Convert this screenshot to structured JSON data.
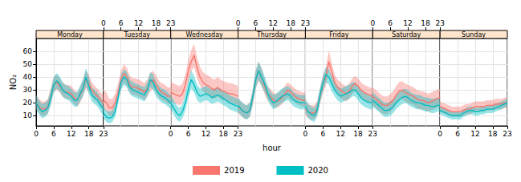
{
  "chart_data": {
    "type": "line",
    "y_label": "NO₂",
    "x_label": "hour",
    "panels": [
      "Monday",
      "Tuesday",
      "Wednesday",
      "Thursday",
      "Friday",
      "Saturday",
      "Sunday"
    ],
    "x": [
      0,
      1,
      2,
      3,
      4,
      5,
      6,
      7,
      8,
      9,
      10,
      11,
      12,
      13,
      14,
      15,
      16,
      17,
      18,
      19,
      20,
      21,
      22,
      23
    ],
    "xlim": [
      0,
      23
    ],
    "xticks": [
      0,
      6,
      12,
      18,
      23
    ],
    "ylim": [
      2,
      70
    ],
    "yticks": [
      10,
      20,
      30,
      40,
      50,
      60
    ],
    "grid": true,
    "legend": "bottom",
    "series": [
      {
        "name": "2019",
        "color": "#F8766D",
        "values": [
          [
            20,
            17,
            15,
            15,
            17,
            25,
            34,
            36,
            33,
            30,
            28,
            28,
            27,
            24,
            22,
            26,
            31,
            38,
            35,
            30,
            27,
            25,
            22,
            20
          ],
          [
            22,
            20,
            16,
            16,
            20,
            28,
            38,
            43,
            40,
            34,
            32,
            32,
            31,
            30,
            28,
            31,
            36,
            38,
            34,
            30,
            28,
            27,
            25,
            25
          ],
          [
            28,
            27,
            26,
            25,
            27,
            34,
            45,
            52,
            57,
            47,
            40,
            36,
            34,
            33,
            31,
            30,
            32,
            30,
            29,
            28,
            27,
            27,
            26,
            25
          ],
          [
            17,
            15,
            13,
            12,
            14,
            24,
            38,
            45,
            40,
            33,
            27,
            25,
            22,
            21,
            22,
            24,
            27,
            30,
            28,
            26,
            24,
            23,
            22,
            22
          ],
          [
            15,
            13,
            12,
            12,
            15,
            25,
            35,
            40,
            52,
            44,
            36,
            32,
            30,
            28,
            27,
            29,
            33,
            35,
            33,
            30,
            28,
            27,
            26,
            25
          ],
          [
            25,
            23,
            21,
            19,
            18,
            18,
            20,
            22,
            26,
            29,
            30,
            28,
            27,
            26,
            25,
            23,
            22,
            22,
            21,
            20,
            21,
            22,
            23,
            24
          ],
          [
            17,
            16,
            15,
            14,
            13,
            13,
            13,
            13,
            14,
            15,
            15,
            16,
            17,
            17,
            17,
            17,
            18,
            18,
            18,
            19,
            19,
            19,
            20,
            20
          ]
        ],
        "lower": [
          [
            15,
            12,
            10,
            10,
            12,
            19,
            28,
            30,
            28,
            25,
            23,
            23,
            22,
            19,
            17,
            20,
            25,
            31,
            29,
            25,
            22,
            20,
            17,
            15
          ],
          [
            15,
            13,
            10,
            10,
            14,
            21,
            31,
            36,
            33,
            28,
            26,
            26,
            25,
            24,
            22,
            25,
            29,
            31,
            28,
            24,
            22,
            21,
            19,
            19
          ],
          [
            21,
            20,
            19,
            18,
            20,
            27,
            37,
            44,
            48,
            39,
            33,
            29,
            27,
            26,
            24,
            23,
            25,
            23,
            22,
            21,
            20,
            20,
            19,
            18
          ],
          [
            12,
            10,
            8,
            7,
            9,
            18,
            31,
            37,
            33,
            27,
            22,
            20,
            17,
            16,
            17,
            19,
            22,
            24,
            22,
            21,
            19,
            18,
            17,
            17
          ],
          [
            10,
            8,
            7,
            7,
            10,
            19,
            28,
            33,
            44,
            37,
            30,
            26,
            24,
            22,
            21,
            23,
            27,
            29,
            27,
            24,
            22,
            21,
            20,
            19
          ],
          [
            18,
            16,
            14,
            12,
            11,
            11,
            13,
            15,
            19,
            22,
            23,
            21,
            20,
            19,
            18,
            16,
            15,
            15,
            14,
            13,
            14,
            15,
            16,
            17
          ],
          [
            13,
            12,
            11,
            10,
            9,
            9,
            9,
            9,
            10,
            11,
            11,
            12,
            13,
            13,
            13,
            13,
            14,
            14,
            14,
            15,
            15,
            15,
            16,
            16
          ]
        ],
        "upper": [
          [
            26,
            23,
            21,
            21,
            23,
            31,
            40,
            42,
            39,
            36,
            34,
            34,
            33,
            30,
            28,
            32,
            38,
            45,
            42,
            36,
            33,
            31,
            28,
            26
          ],
          [
            30,
            28,
            23,
            23,
            27,
            35,
            45,
            50,
            47,
            41,
            39,
            39,
            38,
            37,
            35,
            38,
            43,
            45,
            41,
            37,
            35,
            34,
            32,
            32
          ],
          [
            36,
            35,
            34,
            33,
            35,
            42,
            53,
            61,
            66,
            55,
            48,
            44,
            42,
            41,
            39,
            38,
            40,
            38,
            37,
            36,
            35,
            35,
            34,
            33
          ],
          [
            23,
            21,
            19,
            18,
            20,
            30,
            45,
            52,
            47,
            39,
            33,
            31,
            28,
            27,
            28,
            30,
            33,
            36,
            34,
            32,
            30,
            29,
            28,
            28
          ],
          [
            21,
            19,
            18,
            18,
            21,
            31,
            42,
            47,
            61,
            51,
            42,
            38,
            36,
            34,
            33,
            35,
            39,
            41,
            39,
            36,
            34,
            33,
            32,
            31
          ],
          [
            32,
            30,
            28,
            26,
            25,
            25,
            27,
            29,
            33,
            36,
            37,
            35,
            34,
            33,
            32,
            30,
            29,
            29,
            28,
            27,
            28,
            29,
            30,
            31
          ],
          [
            21,
            20,
            19,
            18,
            17,
            17,
            17,
            17,
            18,
            19,
            19,
            20,
            21,
            21,
            21,
            21,
            22,
            22,
            22,
            23,
            23,
            23,
            24,
            24
          ]
        ]
      },
      {
        "name": "2020",
        "color": "#00BFC4",
        "values": [
          [
            20,
            16,
            13,
            14,
            16,
            24,
            34,
            37,
            35,
            30,
            28,
            27,
            25,
            22,
            22,
            27,
            31,
            40,
            33,
            26,
            24,
            22,
            18,
            15
          ],
          [
            12,
            9,
            8,
            9,
            13,
            24,
            36,
            40,
            38,
            32,
            30,
            29,
            28,
            27,
            26,
            30,
            38,
            36,
            30,
            27,
            25,
            24,
            22,
            20
          ],
          [
            20,
            16,
            12,
            10,
            13,
            20,
            30,
            38,
            34,
            28,
            25,
            26,
            27,
            26,
            24,
            25,
            26,
            25,
            23,
            22,
            20,
            19,
            18,
            17
          ],
          [
            18,
            15,
            13,
            12,
            14,
            24,
            38,
            45,
            40,
            35,
            28,
            23,
            20,
            21,
            23,
            25,
            26,
            27,
            25,
            22,
            21,
            20,
            20,
            20
          ],
          [
            17,
            13,
            11,
            10,
            14,
            26,
            35,
            42,
            40,
            35,
            30,
            27,
            25,
            26,
            27,
            28,
            30,
            30,
            27,
            24,
            22,
            21,
            20,
            20
          ],
          [
            22,
            20,
            18,
            16,
            14,
            14,
            15,
            17,
            20,
            22,
            24,
            25,
            24,
            22,
            21,
            20,
            20,
            19,
            18,
            18,
            17,
            17,
            18,
            18
          ],
          [
            14,
            13,
            12,
            11,
            10,
            10,
            10,
            10,
            12,
            13,
            14,
            14,
            13,
            13,
            14,
            14,
            15,
            15,
            15,
            16,
            17,
            18,
            19,
            20
          ]
        ],
        "lower": [
          [
            15,
            11,
            8,
            9,
            11,
            18,
            28,
            31,
            29,
            25,
            23,
            22,
            20,
            17,
            17,
            21,
            25,
            33,
            27,
            21,
            19,
            17,
            13,
            10
          ],
          [
            8,
            5,
            4,
            5,
            9,
            19,
            30,
            34,
            32,
            27,
            25,
            24,
            23,
            22,
            21,
            25,
            32,
            30,
            25,
            22,
            20,
            19,
            17,
            15
          ],
          [
            15,
            11,
            7,
            5,
            8,
            14,
            24,
            31,
            28,
            22,
            20,
            21,
            22,
            21,
            19,
            20,
            21,
            20,
            18,
            17,
            15,
            14,
            13,
            12
          ],
          [
            13,
            10,
            8,
            7,
            9,
            18,
            31,
            38,
            33,
            29,
            23,
            18,
            15,
            16,
            18,
            20,
            21,
            22,
            20,
            17,
            16,
            15,
            15,
            15
          ],
          [
            12,
            8,
            6,
            5,
            9,
            20,
            29,
            36,
            34,
            29,
            25,
            22,
            20,
            21,
            22,
            23,
            25,
            25,
            22,
            19,
            17,
            16,
            15,
            15
          ],
          [
            17,
            15,
            13,
            11,
            9,
            9,
            10,
            12,
            15,
            17,
            19,
            20,
            19,
            17,
            16,
            15,
            15,
            14,
            13,
            13,
            12,
            12,
            13,
            13
          ],
          [
            11,
            10,
            9,
            8,
            7,
            7,
            7,
            7,
            9,
            10,
            11,
            11,
            10,
            10,
            11,
            11,
            12,
            12,
            12,
            13,
            14,
            15,
            16,
            17
          ]
        ],
        "upper": [
          [
            26,
            22,
            19,
            20,
            22,
            30,
            40,
            43,
            41,
            36,
            34,
            33,
            31,
            28,
            28,
            33,
            38,
            47,
            40,
            32,
            30,
            28,
            24,
            21
          ],
          [
            17,
            14,
            13,
            14,
            18,
            30,
            42,
            46,
            44,
            38,
            36,
            35,
            34,
            33,
            32,
            36,
            44,
            42,
            36,
            33,
            31,
            30,
            28,
            26
          ],
          [
            26,
            22,
            18,
            16,
            19,
            27,
            37,
            45,
            41,
            34,
            31,
            32,
            33,
            32,
            30,
            31,
            32,
            31,
            29,
            28,
            26,
            25,
            24,
            23
          ],
          [
            24,
            21,
            19,
            18,
            20,
            30,
            45,
            52,
            47,
            41,
            34,
            29,
            26,
            27,
            29,
            31,
            32,
            33,
            31,
            28,
            27,
            26,
            26,
            26
          ],
          [
            23,
            19,
            17,
            16,
            20,
            32,
            41,
            48,
            46,
            41,
            36,
            33,
            31,
            32,
            33,
            34,
            36,
            36,
            33,
            30,
            28,
            27,
            26,
            26
          ],
          [
            28,
            26,
            24,
            22,
            20,
            20,
            21,
            23,
            26,
            28,
            30,
            31,
            30,
            28,
            27,
            26,
            26,
            25,
            24,
            24,
            23,
            23,
            24,
            24
          ],
          [
            17,
            16,
            15,
            14,
            13,
            13,
            13,
            13,
            15,
            16,
            17,
            17,
            16,
            16,
            17,
            17,
            18,
            18,
            18,
            19,
            20,
            21,
            22,
            23
          ]
        ]
      }
    ]
  }
}
